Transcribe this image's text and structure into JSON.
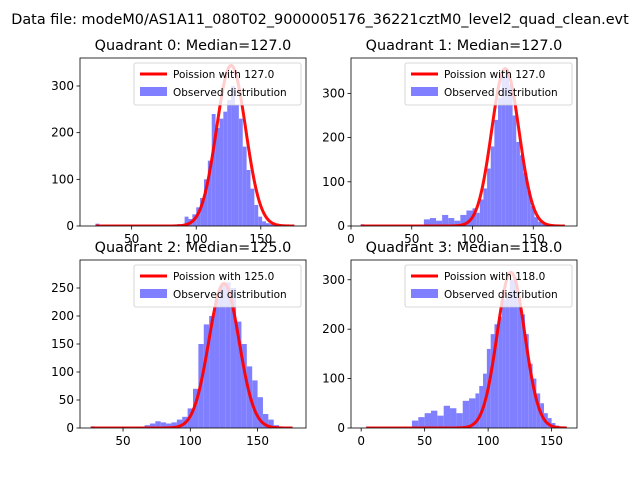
{
  "figure": {
    "suptitle": "Data file: modeM0/AS1A11_080T02_9000005176_36221cztM0_level2_quad_clean.evt"
  },
  "colors": {
    "bars": "#7f7fff",
    "fit_line": "#ff0000",
    "legend_bar": "#7f7fff"
  },
  "chart_data": [
    {
      "type": "bar",
      "title": "Quadrant 0: Median=127.0",
      "xlim": [
        10,
        185
      ],
      "ylim": [
        0,
        360
      ],
      "xticks": [
        "50",
        "100",
        "150"
      ],
      "yticks": [
        "0",
        "100",
        "200",
        "300"
      ],
      "legend": {
        "placement": "top-right",
        "entries": [
          "Poission with 127.0",
          "Observed distribution"
        ]
      },
      "hist_x": [
        22,
        85,
        88,
        91,
        94,
        97,
        100,
        103,
        106,
        109,
        112,
        115,
        118,
        121,
        124,
        127,
        130,
        133,
        136,
        139,
        142,
        145,
        148,
        151,
        154,
        157,
        160,
        163,
        166
      ],
      "hist_y": [
        5,
        4,
        3,
        20,
        15,
        25,
        40,
        60,
        100,
        140,
        240,
        210,
        230,
        245,
        270,
        300,
        260,
        230,
        170,
        120,
        80,
        45,
        20,
        10,
        6,
        4,
        2,
        1,
        0
      ],
      "fit_mu": 127,
      "fit_peak": 344,
      "fit_x_range": [
        22,
        176
      ]
    },
    {
      "type": "bar",
      "title": "Quadrant 1: Median=127.0",
      "xlim": [
        0,
        186
      ],
      "ylim": [
        0,
        380
      ],
      "xticks": [
        "0",
        "50",
        "100",
        "150"
      ],
      "yticks": [
        "0",
        "100",
        "200",
        "300"
      ],
      "legend": {
        "placement": "top-right",
        "entries": [
          "Poission with 127.0",
          "Observed distribution"
        ]
      },
      "hist_x": [
        8,
        55,
        60,
        65,
        70,
        75,
        80,
        85,
        90,
        95,
        100,
        103,
        106,
        109,
        112,
        115,
        118,
        121,
        124,
        127,
        130,
        133,
        136,
        139,
        142,
        145,
        148,
        151,
        154,
        157,
        160,
        163,
        166,
        169
      ],
      "hist_y": [
        4,
        3,
        15,
        18,
        12,
        25,
        18,
        12,
        25,
        35,
        40,
        30,
        60,
        85,
        130,
        180,
        240,
        290,
        340,
        355,
        320,
        250,
        190,
        160,
        120,
        80,
        45,
        20,
        10,
        5,
        3,
        2,
        1,
        1
      ],
      "fit_mu": 127,
      "fit_peak": 356,
      "fit_x_range": [
        8,
        176
      ]
    },
    {
      "type": "bar",
      "title": "Quadrant 2: Median=125.0",
      "xlim": [
        18,
        186
      ],
      "ylim": [
        0,
        300
      ],
      "xticks": [
        "50",
        "100",
        "150"
      ],
      "yticks": [
        "0",
        "50",
        "100",
        "150",
        "200",
        "250"
      ],
      "legend": {
        "placement": "top-right",
        "entries": [
          "Poission with 125.0",
          "Observed distribution"
        ]
      },
      "hist_x": [
        26,
        62,
        66,
        70,
        74,
        78,
        82,
        86,
        90,
        94,
        98,
        102,
        106,
        110,
        114,
        118,
        122,
        126,
        130,
        134,
        138,
        142,
        146,
        150,
        154,
        158,
        162,
        166,
        170
      ],
      "hist_y": [
        3,
        2,
        5,
        8,
        12,
        10,
        8,
        10,
        15,
        20,
        35,
        70,
        150,
        185,
        200,
        230,
        255,
        260,
        250,
        190,
        150,
        110,
        85,
        55,
        25,
        15,
        5,
        2,
        1
      ],
      "fit_mu": 125,
      "fit_peak": 258,
      "fit_x_range": [
        26,
        176
      ]
    },
    {
      "type": "bar",
      "title": "Quadrant 3: Median=118.0",
      "xlim": [
        -8,
        170
      ],
      "ylim": [
        0,
        340
      ],
      "xticks": [
        "0",
        "50",
        "100",
        "150"
      ],
      "yticks": [
        "0",
        "100",
        "200",
        "300"
      ],
      "legend": {
        "placement": "top-right",
        "entries": [
          "Poission with 118.0",
          "Observed distribution"
        ]
      },
      "hist_x": [
        4,
        40,
        45,
        50,
        55,
        60,
        65,
        70,
        75,
        80,
        85,
        90,
        93,
        96,
        99,
        102,
        105,
        108,
        111,
        114,
        117,
        120,
        123,
        126,
        129,
        132,
        135,
        138,
        141,
        144,
        147,
        150,
        153,
        156
      ],
      "hist_y": [
        3,
        15,
        22,
        30,
        35,
        25,
        45,
        40,
        30,
        55,
        60,
        70,
        85,
        110,
        160,
        190,
        210,
        225,
        260,
        270,
        300,
        305,
        265,
        230,
        190,
        130,
        100,
        70,
        50,
        30,
        20,
        10,
        5,
        2
      ],
      "fit_mu": 118,
      "fit_peak": 315,
      "fit_x_range": [
        4,
        162
      ]
    }
  ]
}
